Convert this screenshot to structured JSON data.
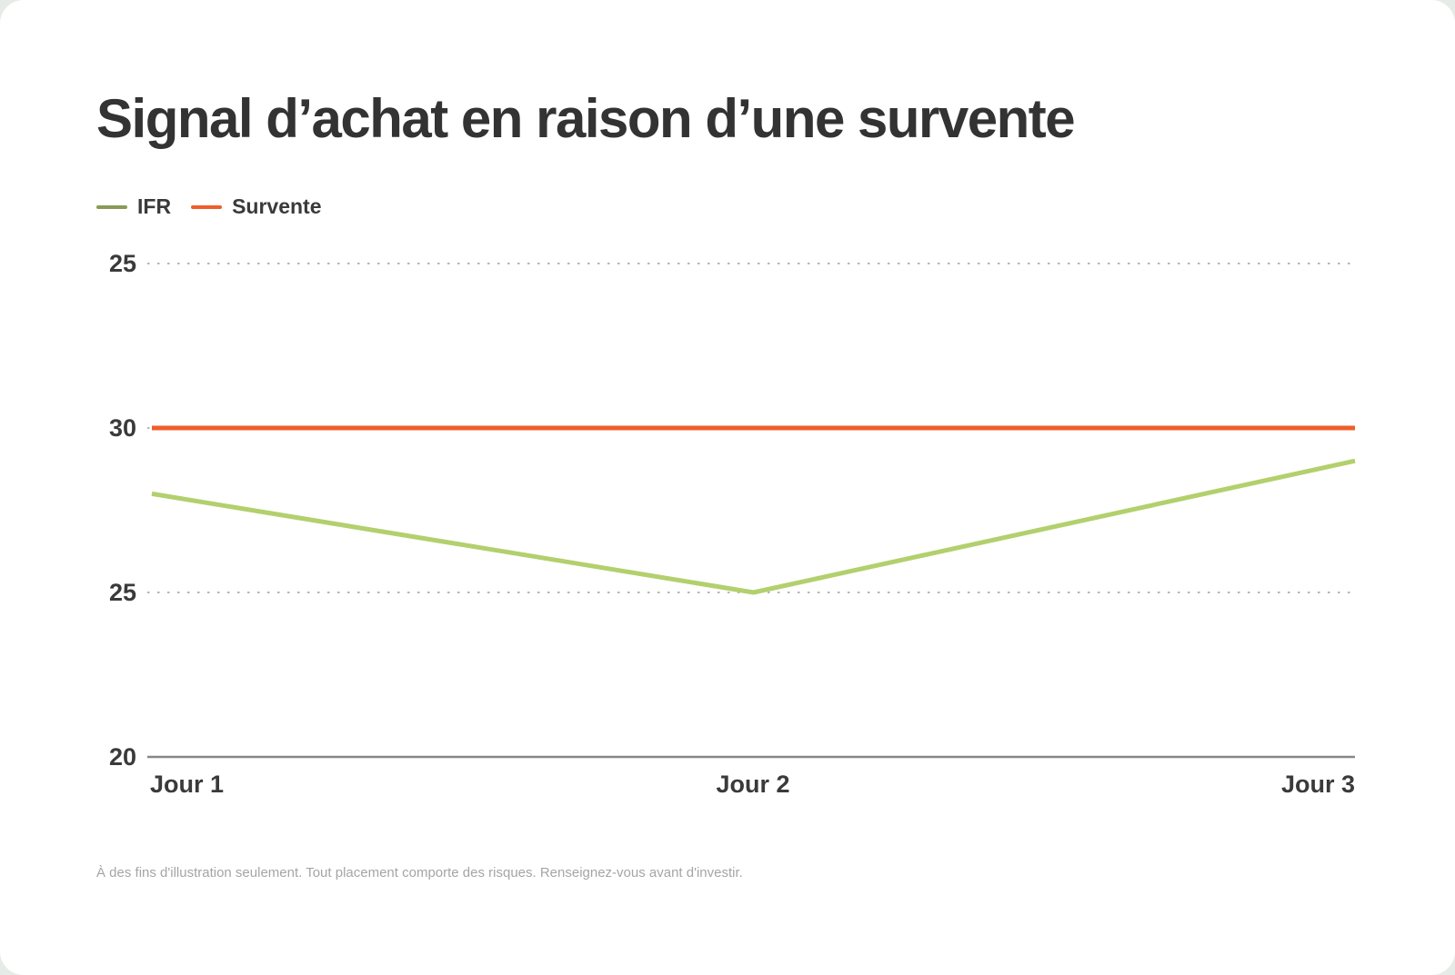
{
  "card": {
    "title": "Signal d’achat en raison d’une survente",
    "footnote": "À des fins d'illustration seulement. Tout placement comporte des risques. Renseignez-vous avant d'investir."
  },
  "chart_data": {
    "type": "line",
    "title": "Signal d’achat en raison d’une survente",
    "categories": [
      "Jour 1",
      "Jour 2",
      "Jour 3"
    ],
    "series": [
      {
        "name": "IFR",
        "values": [
          28,
          25,
          29
        ],
        "color": "#b2d06d",
        "legend_color": "#8a9a57"
      },
      {
        "name": "Survente",
        "values": [
          30,
          30,
          30
        ],
        "color": "#ee5f2b",
        "legend_color": "#ee5f2b"
      }
    ],
    "y_axis_labels_top_to_bottom": [
      "25",
      "30",
      "25",
      "20"
    ],
    "y_value_anchors": {
      "30": 1,
      "25": 2
    },
    "grid": "horizontal dotted",
    "x_axis_line": "solid gray at bottom (label 20)",
    "legend_position": "top-left"
  },
  "colors": {
    "title_text": "#333333",
    "axis_text": "#3a3a3a",
    "gridline_dotted": "#b6b6b6",
    "axis_line": "#868686",
    "footnote_text": "#a5a5a5",
    "background": "#ffffff"
  }
}
